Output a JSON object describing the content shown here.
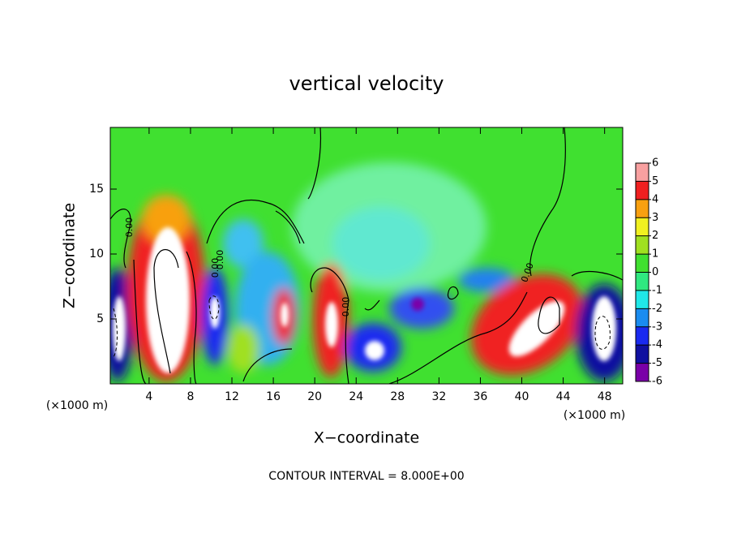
{
  "chart_data": {
    "type": "contour",
    "title": "vertical velocity",
    "x_label": "X−coordinate",
    "y_label": "Z−coordinate",
    "x_unit": "(×1000 m)",
    "annotation": "CONTOUR INTERVAL = 8.000E+00",
    "contour_label": "0.00",
    "xlim": [
      0.25,
      49.75
    ],
    "xticks": [
      4,
      8,
      12,
      16,
      20,
      24,
      28,
      32,
      36,
      40,
      44,
      48
    ],
    "ylim": [
      0,
      19.75
    ],
    "yticks": [
      5,
      10,
      15
    ],
    "colorbar": {
      "levels": [
        -6,
        -5,
        -4,
        -3,
        -2,
        -1,
        0,
        1,
        2,
        3,
        4,
        5,
        6
      ],
      "colors": [
        "#7a00a8",
        "#1010a0",
        "#1a2af0",
        "#1a8cf0",
        "#20e8e8",
        "#30e880",
        "#40e030",
        "#a0e020",
        "#f0f020",
        "#f8a010",
        "#f02020",
        "#f8a0a0"
      ]
    }
  }
}
